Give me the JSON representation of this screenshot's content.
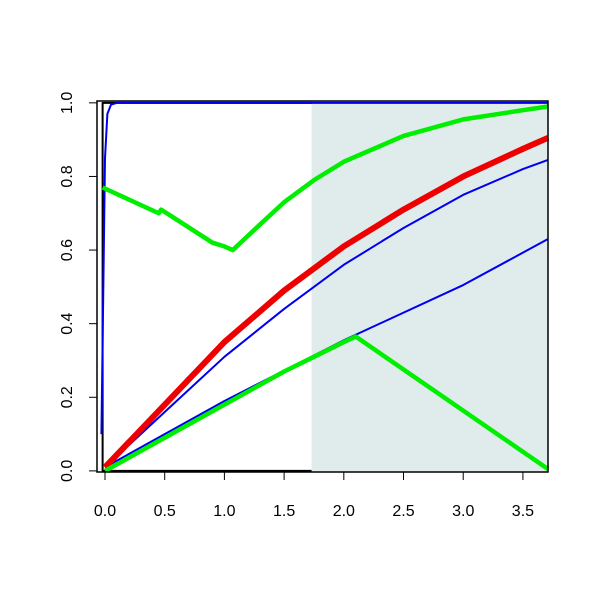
{
  "chart_data": {
    "type": "line",
    "xlim": [
      -0.067,
      3.71
    ],
    "ylim": [
      -0.003,
      1.005
    ],
    "xticks": [
      {
        "value": 0,
        "label": "0.0"
      },
      0.5,
      {
        "value": 1,
        "label": "1.0"
      },
      1.5,
      {
        "value": 2,
        "label": "2.0"
      },
      2.5,
      {
        "value": 3,
        "label": "3.0"
      },
      3.5
    ],
    "yticks": [
      {
        "value": 0,
        "label": "0.0"
      },
      0.2,
      0.4,
      0.6,
      0.8,
      {
        "value": 1,
        "label": "1.0"
      }
    ],
    "shaded_x": [
      1.73,
      3.71
    ],
    "shade_color": "#e0ecec",
    "series": [
      {
        "color": "#000000",
        "line_width": 2,
        "x": [
          1.73,
          -0.02,
          -0.02,
          1.73
        ],
        "values": [
          0,
          0,
          1,
          1
        ]
      },
      {
        "color": "#0000ee",
        "line_width": 2,
        "x": [
          -0.03,
          -0.01,
          0,
          0.02,
          0.05,
          0.1,
          3.71
        ],
        "values": [
          0.1,
          0.6,
          0.85,
          0.97,
          0.995,
          1,
          1
        ]
      },
      {
        "color": "#0000ee",
        "line_width": 2,
        "x": [
          0,
          0.5,
          1,
          1.5,
          2,
          2.5,
          3,
          3.5,
          3.71
        ],
        "values": [
          0.01,
          0.16,
          0.31,
          0.44,
          0.56,
          0.66,
          0.75,
          0.82,
          0.845
        ]
      },
      {
        "color": "#0000ee",
        "line_width": 2,
        "x": [
          0,
          1,
          2,
          3,
          3.71
        ],
        "values": [
          0.01,
          0.19,
          0.355,
          0.505,
          0.63
        ]
      },
      {
        "color": "#ee0000",
        "line_width": 6,
        "x": [
          0,
          0.5,
          1,
          1.5,
          2,
          2.5,
          3,
          3.5,
          3.71
        ],
        "values": [
          0.01,
          0.18,
          0.35,
          0.49,
          0.61,
          0.71,
          0.8,
          0.875,
          0.905
        ]
      },
      {
        "color": "#00ee00",
        "line_width": 4.5,
        "x": [
          -0.02,
          0.45,
          0.47,
          0.9,
          1,
          1.07,
          1.3,
          1.5,
          1.75,
          2,
          2.5,
          3,
          3.5,
          3.71
        ],
        "values": [
          0.77,
          0.7,
          0.71,
          0.62,
          0.61,
          0.6,
          0.67,
          0.73,
          0.79,
          0.84,
          0.91,
          0.955,
          0.98,
          0.99
        ]
      },
      {
        "color": "#00ee00",
        "line_width": 4.5,
        "x": [
          0,
          0.5,
          1,
          1.5,
          1.75,
          2,
          2.1,
          3.71
        ],
        "values": [
          0,
          0.09,
          0.18,
          0.27,
          0.31,
          0.35,
          0.365,
          0.005
        ]
      }
    ]
  }
}
